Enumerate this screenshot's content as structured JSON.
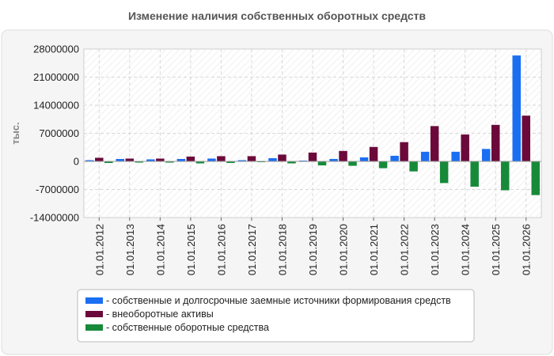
{
  "chart_data": {
    "type": "bar",
    "title": "Изменение наличия собственных оборотных средств",
    "ylabel": "тыс.",
    "xlabel": "",
    "ylim": [
      -14000000,
      28000000
    ],
    "yticks": [
      28000000,
      21000000,
      14000000,
      7000000,
      0,
      -7000000,
      -14000000
    ],
    "grid": true,
    "legend_position": "bottom",
    "categories": [
      "01.01.2012",
      "01.01.2013",
      "01.01.2014",
      "01.01.2015",
      "01.01.2016",
      "01.01.2017",
      "01.01.2018",
      "01.01.2019",
      "01.01.2020",
      "01.01.2021",
      "01.01.2022",
      "01.01.2023",
      "01.01.2024",
      "01.01.2025",
      "01.01.2026"
    ],
    "series": [
      {
        "name": "- собственные и долгосрочные заемные источники формирования средств",
        "color": "#1a6ef2",
        "values": [
          300000,
          600000,
          500000,
          600000,
          700000,
          300000,
          800000,
          200000,
          600000,
          1000000,
          1400000,
          2400000,
          2400000,
          3100000,
          26400000
        ]
      },
      {
        "name": "- внеоборотные активы",
        "color": "#6b0a3a",
        "values": [
          900000,
          700000,
          700000,
          1200000,
          1300000,
          1300000,
          1700000,
          2200000,
          2600000,
          3600000,
          4800000,
          8800000,
          6700000,
          9100000,
          11400000
        ]
      },
      {
        "name": "- собственные оборотные средства",
        "color": "#178a3a",
        "values": [
          -400000,
          -300000,
          -300000,
          -500000,
          -400000,
          -200000,
          -500000,
          -1000000,
          -1100000,
          -1700000,
          -2500000,
          -5400000,
          -6300000,
          -7200000,
          -8400000
        ]
      }
    ]
  }
}
